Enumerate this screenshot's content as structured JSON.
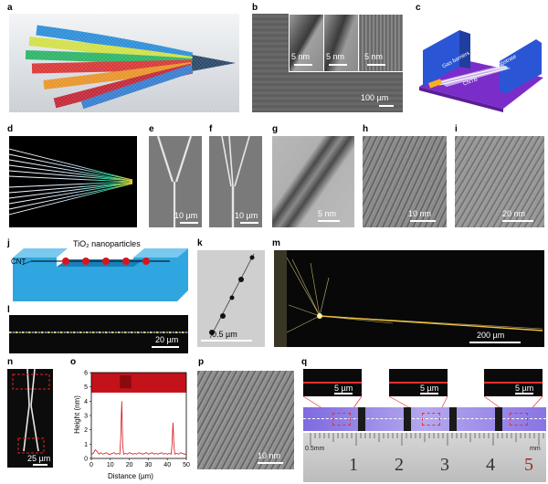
{
  "panel_labels": [
    "a",
    "b",
    "c",
    "d",
    "e",
    "f",
    "g",
    "h",
    "i",
    "j",
    "k",
    "l",
    "m",
    "n",
    "o",
    "p",
    "q"
  ],
  "b": {
    "scalebars": [
      "5 nm",
      "5 nm",
      "5 nm",
      "100 µm"
    ]
  },
  "c": {
    "labels": [
      "Gas barriers",
      "Substrate",
      "CNTB"
    ]
  },
  "e": {
    "scalebar": "10 µm"
  },
  "f": {
    "scalebar": "10 µm"
  },
  "g": {
    "scalebar": "5 nm"
  },
  "h": {
    "scalebar": "10 nm"
  },
  "i": {
    "scalebar": "20 nm"
  },
  "j": {
    "title": "TiO₂ nanoparticles",
    "cnt_label": "CNT"
  },
  "k": {
    "scalebar": "0.5 µm"
  },
  "l": {
    "scalebar": "20 µm"
  },
  "m": {
    "scalebar": "200 µm"
  },
  "n": {
    "scalebar": "25 µm"
  },
  "p": {
    "scalebar": "10 nm"
  },
  "q": {
    "scalebars": [
      "5 µm",
      "5 µm",
      "5 µm"
    ],
    "ruler_unit": "0.5mm",
    "ruler_numbers": [
      "1",
      "2",
      "3",
      "4",
      "5"
    ],
    "mm_label": "mm"
  },
  "chart_data": {
    "type": "line",
    "xlabel": "Distance (µm)",
    "ylabel": "Height (nm)",
    "xlim": [
      0,
      50
    ],
    "ylim": [
      0,
      6
    ],
    "xticks": [
      "0",
      "10",
      "20",
      "30",
      "40",
      "50"
    ],
    "yticks": [
      "0",
      "1",
      "2",
      "3",
      "4",
      "5",
      "6"
    ],
    "x": [
      0,
      1,
      2,
      3,
      4,
      5,
      6,
      7,
      8,
      9,
      10,
      11,
      12,
      13,
      14,
      15,
      15.5,
      16,
      16.5,
      17,
      18,
      19,
      20,
      21,
      22,
      23,
      24,
      25,
      26,
      27,
      28,
      29,
      30,
      31,
      32,
      33,
      34,
      35,
      36,
      37,
      38,
      39,
      40,
      41,
      42,
      42.5,
      43,
      43.5,
      44,
      45,
      46,
      47,
      48,
      49,
      50
    ],
    "series": [
      {
        "values": [
          0.3,
          0.35,
          0.6,
          0.5,
          0.3,
          0.4,
          0.3,
          0.35,
          0.4,
          0.3,
          0.3,
          0.35,
          0.4,
          0.3,
          0.35,
          0.3,
          1.5,
          4.0,
          1.0,
          0.3,
          0.35,
          0.3,
          0.4,
          0.35,
          0.3,
          0.35,
          0.3,
          0.4,
          0.35,
          0.3,
          0.35,
          0.4,
          0.3,
          0.35,
          0.4,
          0.3,
          0.35,
          0.3,
          0.35,
          0.4,
          0.3,
          0.35,
          0.3,
          0.35,
          0.3,
          1.0,
          2.5,
          0.8,
          0.3,
          0.35,
          0.3,
          0.4,
          0.35,
          0.3,
          0.3
        ]
      }
    ]
  }
}
